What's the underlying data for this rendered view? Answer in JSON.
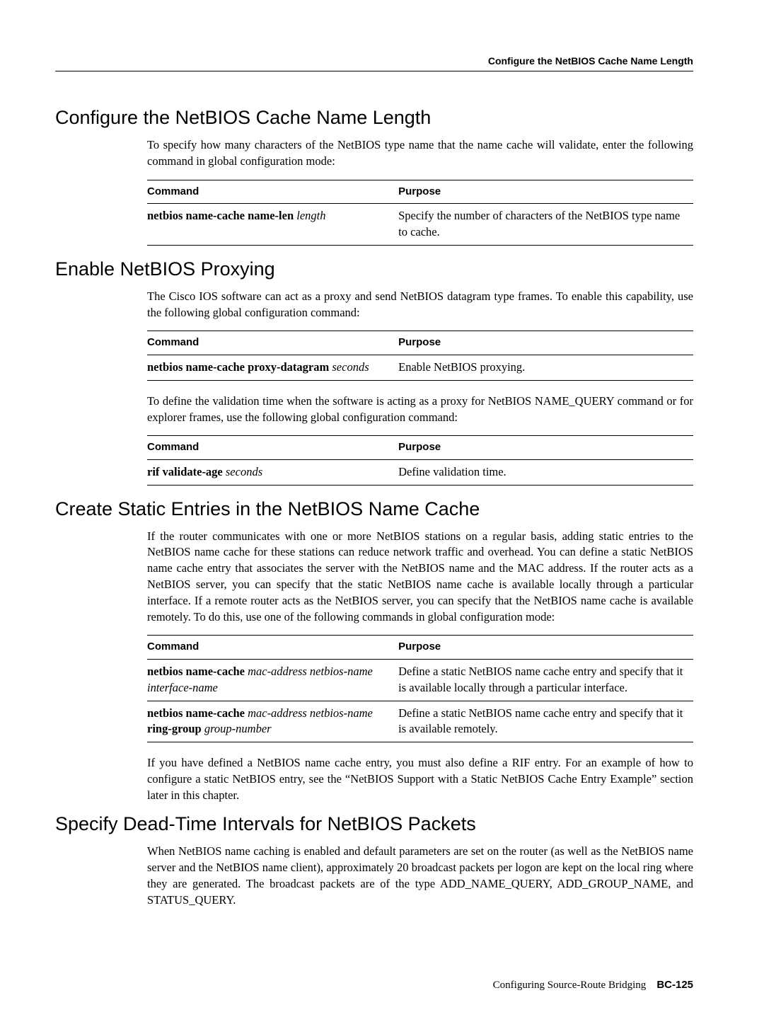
{
  "running_header": "Configure the NetBIOS Cache Name Length",
  "sec1": {
    "title": "Configure the NetBIOS Cache Name Length",
    "p1": "To specify how many characters of the NetBIOS type name that the name cache will validate, enter the following command in global configuration mode:",
    "table": {
      "h_cmd": "Command",
      "h_purpose": "Purpose",
      "r1_cmd_b": "netbios name-cache name-len",
      "r1_cmd_i": "length",
      "r1_purpose": "Specify the number of characters of the NetBIOS type name to cache."
    }
  },
  "sec2": {
    "title": "Enable NetBIOS Proxying",
    "p1": "The Cisco IOS software can act as a proxy and send NetBIOS datagram type frames. To enable this capability, use the following global configuration command:",
    "table1": {
      "h_cmd": "Command",
      "h_purpose": "Purpose",
      "r1_cmd_b": "netbios name-cache proxy-datagram",
      "r1_cmd_i": "seconds",
      "r1_purpose": "Enable NetBIOS proxying."
    },
    "p2": "To define the validation time when the software is acting as a proxy for NetBIOS NAME_QUERY command or for explorer frames, use the following global configuration command:",
    "table2": {
      "h_cmd": "Command",
      "h_purpose": "Purpose",
      "r1_cmd_b": "rif validate-age",
      "r1_cmd_i": "seconds",
      "r1_purpose": "Define validation time."
    }
  },
  "sec3": {
    "title": "Create Static Entries in the NetBIOS Name Cache",
    "p1": "If the router communicates with one or more NetBIOS stations on a regular basis, adding static entries to the NetBIOS name cache for these stations can reduce network traffic and overhead. You can define a static NetBIOS name cache entry that associates the server with the NetBIOS name and the MAC address. If the router acts as a NetBIOS server, you can specify that the static NetBIOS name cache is available locally through a particular interface. If a remote router acts as the NetBIOS server, you can specify that the NetBIOS name cache is available remotely. To do this, use one of the following commands in global configuration mode:",
    "table": {
      "h_cmd": "Command",
      "h_purpose": "Purpose",
      "r1_cmd_b": "netbios name-cache",
      "r1_cmd_i": "mac-address netbios-name interface-name",
      "r1_purpose": "Define a static NetBIOS name cache entry and specify that it is available locally through a particular interface.",
      "r2_cmd_b1": "netbios name-cache",
      "r2_cmd_i1": "mac-address netbios-name",
      "r2_cmd_b2": "ring-group",
      "r2_cmd_i2": "group-number",
      "r2_purpose": "Define a static NetBIOS name cache entry and specify that it is available remotely."
    },
    "p2": "If you have defined a NetBIOS name cache entry, you must also define a RIF entry. For an example of how to configure a static NetBIOS entry, see the “NetBIOS Support with a Static NetBIOS Cache Entry Example” section later in this chapter."
  },
  "sec4": {
    "title": "Specify Dead-Time Intervals for NetBIOS Packets",
    "p1": "When NetBIOS name caching is enabled and default parameters are set on the router (as well as the NetBIOS name server and the NetBIOS name client), approximately 20 broadcast packets per logon are kept on the local ring where they are generated. The broadcast packets are of the type ADD_NAME_QUERY, ADD_GROUP_NAME, and STATUS_QUERY."
  },
  "footer": {
    "text": "Configuring Source-Route Bridging",
    "page": "BC-125"
  }
}
